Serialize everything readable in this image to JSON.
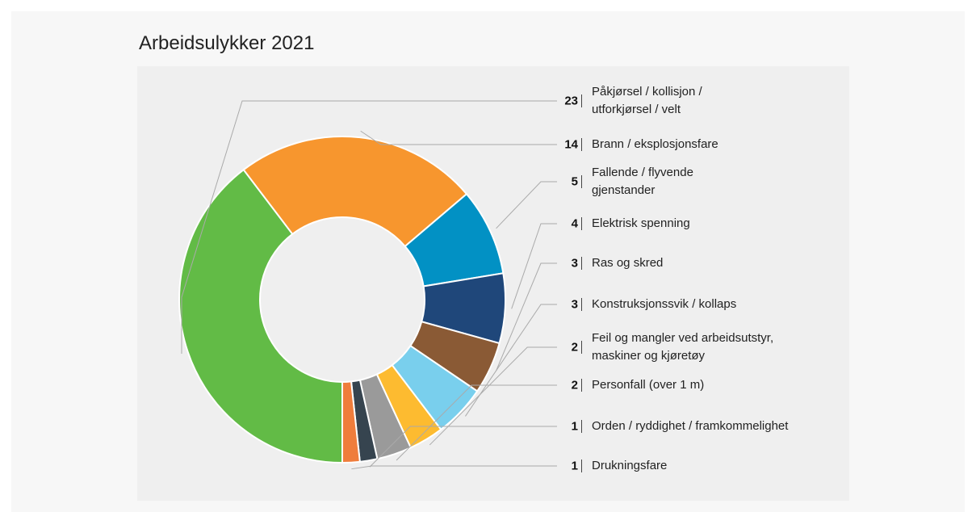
{
  "chart_data": {
    "type": "donut",
    "title": "Arbeidsulykker 2021",
    "categories": [
      "Påkjørsel / kollisjon /\nutforkjørsel / velt",
      "Brann / eksplosjonsfare",
      "Fallende / flyvende\ngjenstander",
      "Elektrisk spenning",
      "Ras og skred",
      "Konstruksjonssvik / kollaps",
      "Feil og mangler ved arbeidsutstyr,\nmaskiner og kjøretøy",
      "Personfall (over 1 m)",
      "Orden / ryddighet / framkommelighet",
      "Drukningsfare"
    ],
    "values": [
      23,
      14,
      5,
      4,
      3,
      3,
      2,
      2,
      1,
      1
    ],
    "colors": [
      "#62bb46",
      "#f7962e",
      "#0291c4",
      "#1f477a",
      "#8a5a35",
      "#79cfed",
      "#fdbb30",
      "#9a9a9a",
      "#36444f",
      "#ef7d3c"
    ]
  }
}
